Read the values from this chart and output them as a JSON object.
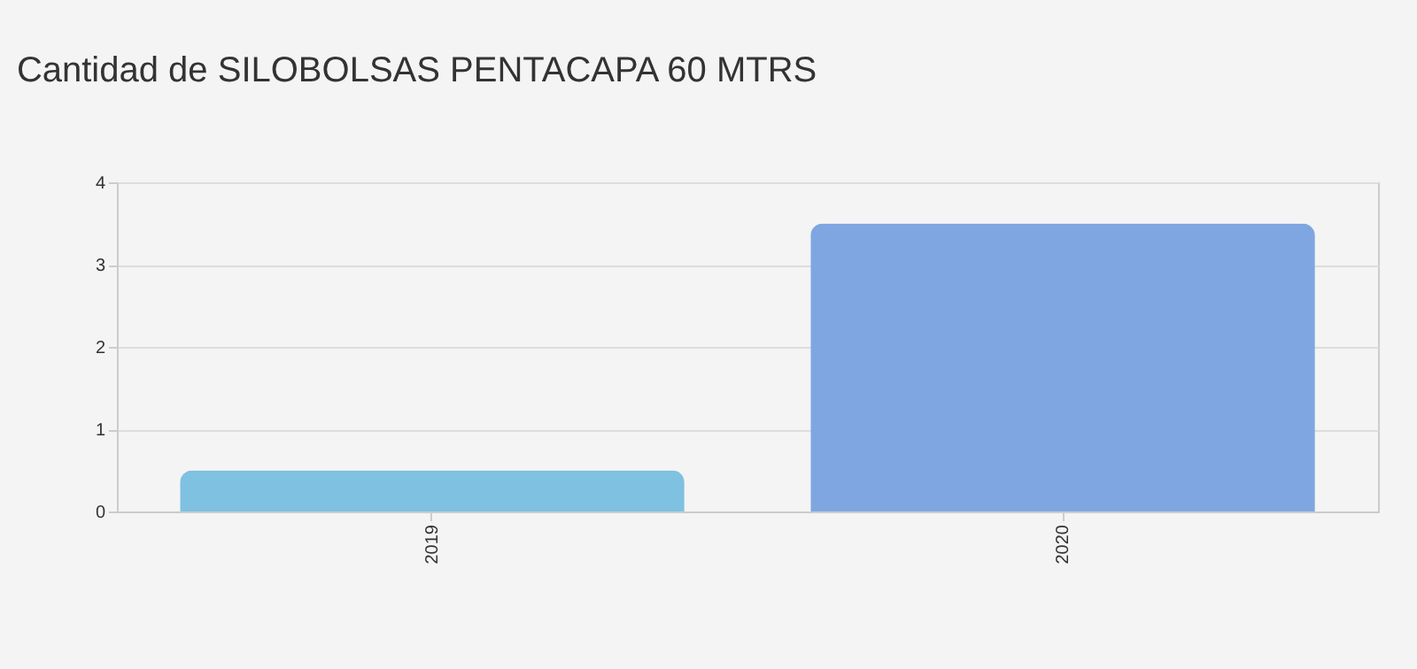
{
  "chart_data": {
    "type": "bar",
    "title": "Cantidad de SILOBOLSAS PENTACAPA 60 MTRS",
    "categories": [
      "2019",
      "2020"
    ],
    "values": [
      0.5,
      3.5
    ],
    "colors": [
      "#7fc1e1",
      "#7fa6e1"
    ],
    "ylim": [
      0,
      4
    ],
    "yticks": [
      0,
      1,
      2,
      3,
      4
    ],
    "grid": "y"
  }
}
